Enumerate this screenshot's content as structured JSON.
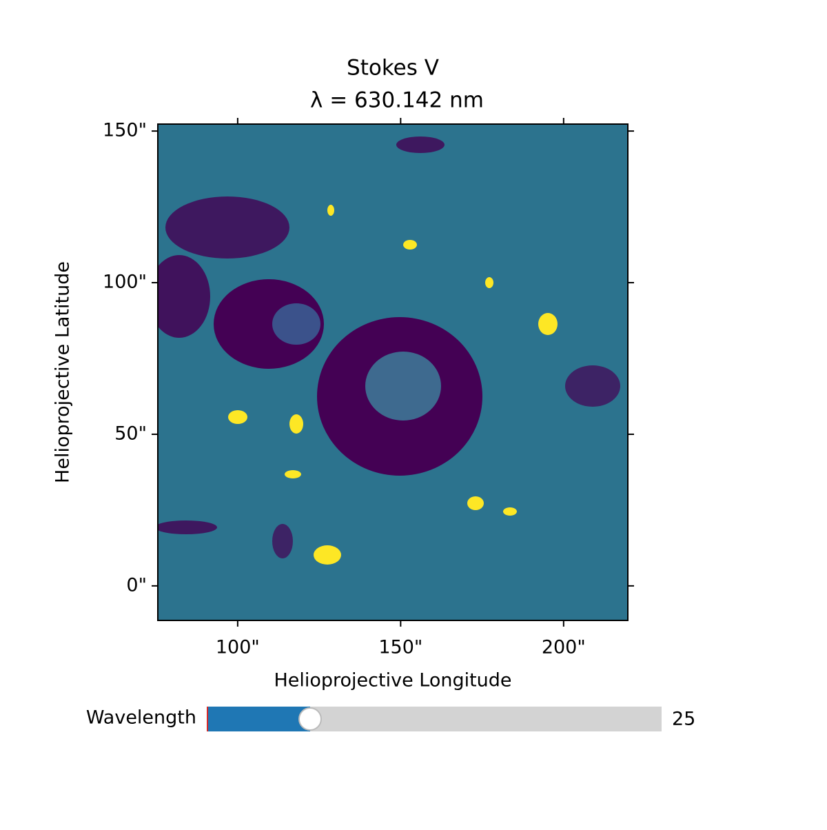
{
  "chart_data": {
    "type": "image",
    "title": "Stokes V",
    "subtitle": "λ = 630.142 nm",
    "x_label": "Helioprojective Longitude",
    "y_label": "Helioprojective Latitude",
    "xlim": [
      75.5,
      219.7
    ],
    "ylim": [
      -11.4,
      152.3
    ],
    "xticks": [
      {
        "value": 100,
        "label": "100\""
      },
      {
        "value": 150,
        "label": "150\""
      },
      {
        "value": 200,
        "label": "200\""
      }
    ],
    "yticks": [
      {
        "value": 0,
        "label": "0\""
      },
      {
        "value": 50,
        "label": "50\""
      },
      {
        "value": 100,
        "label": "100\""
      },
      {
        "value": 150,
        "label": "150\""
      }
    ],
    "slider": {
      "label": "Wavelength",
      "value": 25,
      "min": 0,
      "max": 110,
      "color": "#1f77b4"
    }
  }
}
